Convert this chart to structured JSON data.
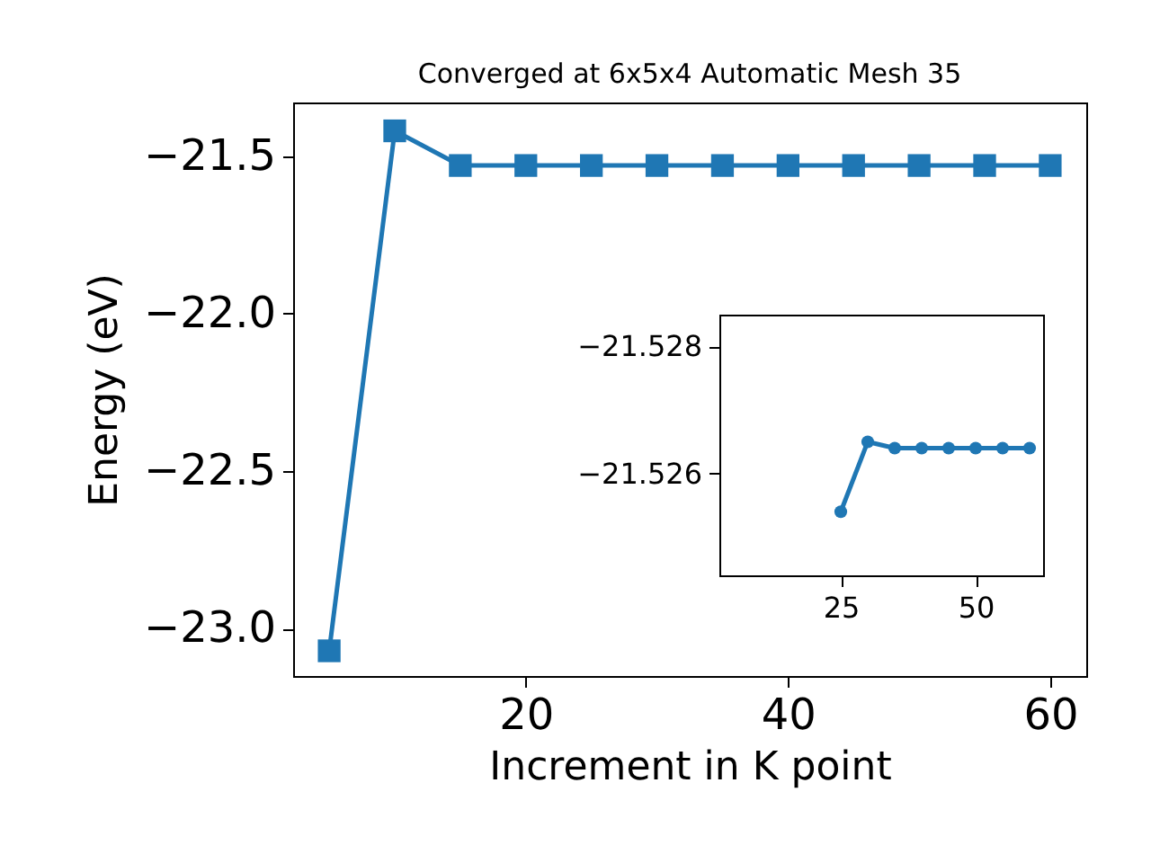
{
  "chart_data": [
    {
      "type": "line",
      "title": "Converged at 6x5x4 Automatic Mesh 35",
      "xlabel": "Increment in K point",
      "ylabel": "Energy (eV)",
      "x": [
        5,
        10,
        15,
        20,
        25,
        30,
        35,
        40,
        45,
        50,
        55,
        60
      ],
      "series": [
        {
          "color": "#1f77b4",
          "values": [
            -23.07,
            -21.42,
            -21.53,
            -21.53,
            -21.53,
            -21.53,
            -21.53,
            -21.53,
            -21.53,
            -21.53,
            -21.53,
            -21.53
          ]
        }
      ],
      "marker": "square",
      "grid": false,
      "xlim": [
        2.25,
        62.75
      ],
      "ylim": [
        -23.15,
        -21.33
      ],
      "xticks": [
        20,
        40,
        60
      ],
      "yticks": [
        {
          "value": -23,
          "label": "−23.0"
        },
        {
          "value": -22.5,
          "label": "−22.5"
        },
        {
          "value": -22,
          "label": "−22.0"
        },
        {
          "value": -21.5,
          "label": "−21.5"
        }
      ]
    },
    {
      "type": "line",
      "x": [
        25,
        30,
        35,
        40,
        45,
        50,
        55,
        60
      ],
      "series": [
        {
          "color": "#1f77b4",
          "values": [
            -21.5254,
            -21.5265,
            -21.5264,
            -21.5264,
            -21.5264,
            -21.5264,
            -21.5264,
            -21.5264
          ]
        }
      ],
      "marker": "circle",
      "grid": false,
      "xlim": [
        2.5,
        62.5
      ],
      "ylim": [
        -21.5244,
        -21.5285
      ],
      "xticks": [
        25,
        50
      ],
      "yticks": [
        {
          "value": -21.528,
          "label": "−21.528"
        },
        {
          "value": -21.526,
          "label": "−21.526"
        }
      ]
    }
  ]
}
